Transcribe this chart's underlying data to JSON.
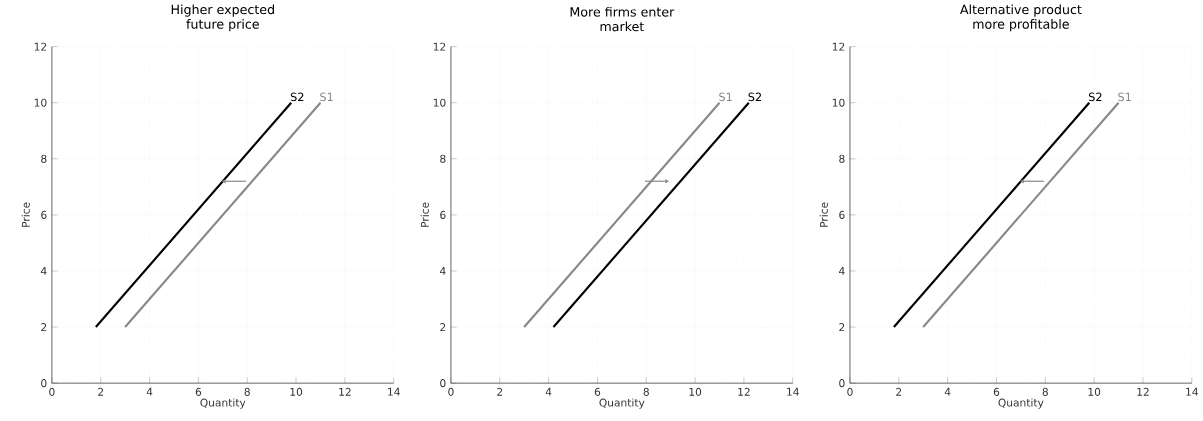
{
  "chart_data": [
    {
      "type": "line",
      "title": "Higher expected future price",
      "xlabel": "Quantity",
      "ylabel": "Price",
      "xlim": [
        0,
        14
      ],
      "ylim": [
        0,
        12
      ],
      "xticks": [
        0,
        2,
        4,
        6,
        8,
        10,
        12,
        14
      ],
      "yticks": [
        0,
        2,
        4,
        6,
        8,
        10,
        12
      ],
      "grid": true,
      "series": [
        {
          "name": "S1",
          "color": "#888888",
          "x": [
            3,
            11
          ],
          "values": [
            2,
            10
          ]
        },
        {
          "name": "S2",
          "color": "#000000",
          "x": [
            1.8,
            9.8
          ],
          "values": [
            2,
            10
          ]
        }
      ]
    },
    {
      "type": "line",
      "title": "More firms enter market",
      "xlabel": "Quantity",
      "ylabel": "Price",
      "xlim": [
        0,
        14
      ],
      "ylim": [
        0,
        12
      ],
      "xticks": [
        0,
        2,
        4,
        6,
        8,
        10,
        12,
        14
      ],
      "yticks": [
        0,
        2,
        4,
        6,
        8,
        10,
        12
      ],
      "grid": true,
      "series": [
        {
          "name": "S1",
          "color": "#888888",
          "x": [
            3,
            11
          ],
          "values": [
            2,
            10
          ]
        },
        {
          "name": "S2",
          "color": "#000000",
          "x": [
            4.2,
            12.2
          ],
          "values": [
            2,
            10
          ]
        }
      ]
    },
    {
      "type": "line",
      "title": "Alternative product more profitable",
      "xlabel": "Quantity",
      "ylabel": "Price",
      "xlim": [
        0,
        14
      ],
      "ylim": [
        0,
        12
      ],
      "xticks": [
        0,
        2,
        4,
        6,
        8,
        10,
        12,
        14
      ],
      "yticks": [
        0,
        2,
        4,
        6,
        8,
        10,
        12
      ],
      "grid": true,
      "series": [
        {
          "name": "S1",
          "color": "#888888",
          "x": [
            3,
            11
          ],
          "values": [
            2,
            10
          ]
        },
        {
          "name": "S2",
          "color": "#000000",
          "x": [
            1.8,
            9.8
          ],
          "values": [
            2,
            10
          ]
        }
      ]
    }
  ]
}
